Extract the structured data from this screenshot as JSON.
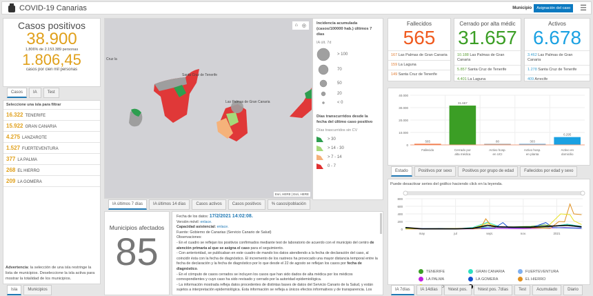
{
  "header": {
    "title": "COVID-19 Canarias",
    "municipio_label": "Municipio",
    "assign_button": "Asignación del caso",
    "menu_icon": "hamburger-icon",
    "logo": "coat-of-arms-logo"
  },
  "cases": {
    "title": "Casos positivos",
    "total": "38.900",
    "percent_text": "1,806% de 2.153.389 personas",
    "rate": "1.806,45",
    "rate_label": "casos por cien mil personas",
    "tabs": [
      "Casos",
      "IA",
      "Test"
    ]
  },
  "islands": {
    "title": "Seleccione una isla para filtrar",
    "items": [
      {
        "value": "16.322",
        "name": "TENERIFE"
      },
      {
        "value": "15.922",
        "name": "GRAN CANARIA"
      },
      {
        "value": "4.275",
        "name": "LANZAROTE"
      },
      {
        "value": "1.527",
        "name": "FUERTEVENTURA"
      },
      {
        "value": "377",
        "name": "LA PALMA"
      },
      {
        "value": "268",
        "name": "EL HIERRO"
      },
      {
        "value": "209",
        "name": "LA GOMERA"
      }
    ],
    "warning_bold": "Advertencia",
    "warning_text": ": la selección de una isla restringe la lista de municipios. Deseleccione la isla activa para mostrar la totalidad de los municipios.",
    "tabs": [
      "Isla",
      "Municipios"
    ]
  },
  "map": {
    "labels": [
      "Santa Cruz de Tenerife",
      "Las Palmas de Gran Canaria",
      "Cruz la"
    ],
    "attribution": "Esri, HERE | Esri, HERE",
    "tabs": [
      "IA últimos 7 días",
      "IA últimos 14 días",
      "Casos activos",
      "Casos positivos",
      "% casos/población"
    ]
  },
  "legend": {
    "title1": "Incidencia acumulada (casos/100000 hab.) últimos 7 días",
    "sub1": "IA últ. 7d",
    "sizes": [
      "> 100",
      "70",
      "50",
      "20",
      "< 0"
    ],
    "title2": "Días transcurridos desde la fecha del último caso positivo",
    "sub2": "Días trascurridos sin CV",
    "classes": [
      {
        "label": "> 30",
        "color": "#2e9e4f"
      },
      {
        "label": "> 14 - 30",
        "color": "#a6d97a"
      },
      {
        "label": "> 7 - 14",
        "color": "#f5b27a"
      },
      {
        "label": "0 - 7",
        "color": "#e03030"
      }
    ]
  },
  "municipios": {
    "title": "Municipios afectados",
    "value": "85"
  },
  "notes": {
    "fecha_label": "Fecha de los datos:",
    "fecha": "17/2/2021 14:02:08.",
    "version_label": "Versión móvil:",
    "version_link": "enlace.",
    "capacidad_label": "Capacidad asistencial:",
    "capacidad_link": "enlace.",
    "fuente": "Fuente: Gobierno de Canarias (Servicio Canario de Salud)",
    "obs_label": "Observaciones:",
    "p1a": "- En el cuadro se reflejan los positivos confirmados mediante test de laboratorio de acuerdo con el municipio del centro ",
    "p1b": "de atención primaria al que se asigna el caso",
    "p1c": " para el seguimiento.",
    "p2a": "- Con anterioridad, se publicaban en este cuadro de mando los datos atendiendo a la fecha de declaración del caso, al coincidir ésta con la fecha de diagnóstico. El incremento de los rastreos ha provocado una mayor distancia temporal entre la fecha de declaración y la fecha de diagnóstico por lo que desde el 22 de agosto se reflejan los casos por ",
    "p2b": "fecha de diagnóstico",
    "p2c": ".",
    "p3": "- En el cómputo de casos cerrados se incluyen los casos que han sido dados de alta médica por los médicos correspondientes y cuyo caso ha sido revisado y cerrado por la autoridad epidemiológica.",
    "p4": "- La información mostrada refleja datos procedentes de distintas bases de datos del Servicio Canario de la Salud, y están sujetos a interpretación epidemiológica. Esta información se refleja a únicos efectos informativos y de transparencia. Los"
  },
  "indicators": [
    {
      "title": "Fallecidos",
      "value": "565",
      "color": "#f05a1e",
      "rows": [
        {
          "v": "167",
          "t": "Las Palmas de Gran Canaria"
        },
        {
          "v": "159",
          "t": "La Laguna"
        },
        {
          "v": "149",
          "t": "Santa Cruz de Tenerife"
        }
      ],
      "rowcolor": "#e07a30"
    },
    {
      "title": "Cerrado por alta médic",
      "value": "31.657",
      "color": "#3b9e25",
      "rows": [
        {
          "v": "10.188",
          "t": "Las Palmas de Gran Canaria"
        },
        {
          "v": "5.857",
          "t": "Santa Cruz de Tenerife"
        },
        {
          "v": "4.401",
          "t": "La Laguna"
        }
      ],
      "rowcolor": "#5a9e35"
    },
    {
      "title": "Activos",
      "value": "6.678",
      "color": "#1ba1e2",
      "rows": [
        {
          "v": "3.462",
          "t": "Las Palmas de Gran Canaria"
        },
        {
          "v": "1.278",
          "t": "Santa Cruz de Tenerife"
        },
        {
          "v": "409",
          "t": "Arrecife"
        }
      ],
      "rowcolor": "#3a9fd0"
    }
  ],
  "bar_tabs": [
    "Estado",
    "Positivos por sexo",
    "Positivos por grupo de edad",
    "Fallecidos por edad y sexo"
  ],
  "line_note": "Puede desactivar series del gráfico haciendo click en la leyenda.",
  "line_tabs": [
    "IA 7días",
    "IA 14días",
    "%test pos.",
    "%test pos. 7días",
    "Test",
    "Acumulado",
    "Diario"
  ],
  "chart_data": [
    {
      "type": "bar",
      "categories": [
        "Fallecido",
        "Cerrado por alta médica",
        "Activo hosp. en UCI",
        "Activo hosp. en planta",
        "Activo en domicilio"
      ],
      "values": [
        565,
        31657,
        80,
        303,
        6295
      ],
      "labels": [
        "565",
        "31.657",
        "80",
        "303",
        "6.295"
      ],
      "colors": [
        "#f05a1e",
        "#3b9e25",
        "#999999",
        "#5aa0d0",
        "#1ba1e2"
      ],
      "ylim": [
        0,
        40000
      ],
      "yticks": [
        "0",
        "10.000",
        "20.000",
        "30.000",
        "40.000"
      ],
      "grid": true
    },
    {
      "type": "line",
      "xticks": [
        {
          "label": "may",
          "date": "2020-05-01"
        },
        {
          "label": "jul",
          "date": "2020-07-01"
        },
        {
          "label": "sept.",
          "date": "2020-09-01"
        },
        {
          "label": "nov.",
          "date": "2020-11-01"
        },
        {
          "label": "2021",
          "date": "2021-01-01"
        }
      ],
      "ylim": [
        0,
        800
      ],
      "yticks": [
        "0",
        "200",
        "400",
        "600",
        "800"
      ],
      "xlim": [
        "2020-04-01",
        "2021-02-17"
      ],
      "legend": "bottom",
      "series": [
        {
          "name": "TENERIFE",
          "color": "#3b9e25",
          "points": [
            [
              "2020-04-01",
              30
            ],
            [
              "2020-05-01",
              5
            ],
            [
              "2020-07-01",
              5
            ],
            [
              "2020-08-01",
              20
            ],
            [
              "2020-08-25",
              60
            ],
            [
              "2020-09-15",
              50
            ],
            [
              "2020-10-15",
              60
            ],
            [
              "2020-11-15",
              70
            ],
            [
              "2020-12-10",
              110
            ],
            [
              "2020-12-25",
              80
            ],
            [
              "2021-01-20",
              90
            ],
            [
              "2021-02-15",
              50
            ]
          ]
        },
        {
          "name": "GRAN CANARIA",
          "color": "#2de0c0",
          "points": [
            [
              "2020-04-01",
              20
            ],
            [
              "2020-05-01",
              3
            ],
            [
              "2020-07-01",
              5
            ],
            [
              "2020-08-01",
              40
            ],
            [
              "2020-08-28",
              180
            ],
            [
              "2020-09-20",
              60
            ],
            [
              "2020-10-15",
              40
            ],
            [
              "2020-11-15",
              40
            ],
            [
              "2020-12-15",
              50
            ],
            [
              "2021-01-20",
              130
            ],
            [
              "2021-02-15",
              70
            ]
          ]
        },
        {
          "name": "FUERTEVENTURA",
          "color": "#7fb0f0",
          "points": [
            [
              "2020-04-01",
              10
            ],
            [
              "2020-06-01",
              20
            ],
            [
              "2020-08-01",
              10
            ],
            [
              "2020-09-01",
              60
            ],
            [
              "2020-10-01",
              30
            ],
            [
              "2020-11-15",
              40
            ],
            [
              "2020-12-15",
              60
            ],
            [
              "2021-01-20",
              100
            ],
            [
              "2021-02-15",
              40
            ]
          ]
        },
        {
          "name": "LA PALMA",
          "color": "#c020e0",
          "points": [
            [
              "2020-04-01",
              5
            ],
            [
              "2020-08-01",
              5
            ],
            [
              "2020-09-15",
              20
            ],
            [
              "2020-11-01",
              10
            ],
            [
              "2020-12-15",
              30
            ],
            [
              "2021-01-15",
              40
            ],
            [
              "2021-02-15",
              20
            ]
          ]
        },
        {
          "name": "LA GOMERA",
          "color": "#1550d0",
          "points": [
            [
              "2020-04-01",
              10
            ],
            [
              "2020-08-15",
              20
            ],
            [
              "2020-09-10",
              30
            ],
            [
              "2020-09-25",
              170
            ],
            [
              "2020-10-05",
              40
            ],
            [
              "2020-11-15",
              30
            ],
            [
              "2020-12-12",
              170
            ],
            [
              "2020-12-25",
              40
            ],
            [
              "2021-02-15",
              20
            ]
          ]
        },
        {
          "name": "EL HIERRO",
          "color": "#e09020",
          "points": [
            [
              "2020-04-01",
              5
            ],
            [
              "2020-08-15",
              10
            ],
            [
              "2020-08-25",
              270
            ],
            [
              "2020-09-05",
              60
            ],
            [
              "2020-10-15",
              50
            ],
            [
              "2020-12-20",
              20
            ],
            [
              "2021-01-05",
              200
            ],
            [
              "2021-01-15",
              190
            ],
            [
              "2021-01-25",
              660
            ],
            [
              "2021-02-01",
              400
            ],
            [
              "2021-02-15",
              380
            ]
          ]
        },
        {
          "name": "LANZAROTE",
          "color": "#e8e020",
          "points": [
            [
              "2020-04-01",
              5
            ],
            [
              "2020-08-01",
              20
            ],
            [
              "2020-08-28",
              150
            ],
            [
              "2020-09-15",
              60
            ],
            [
              "2020-11-15",
              40
            ],
            [
              "2020-12-15",
              60
            ],
            [
              "2021-01-08",
              400
            ],
            [
              "2021-01-25",
              380
            ],
            [
              "2021-02-01",
              220
            ],
            [
              "2021-02-15",
              120
            ]
          ]
        },
        {
          "name": "CANARIAS",
          "color": "#000000",
          "points": [
            [
              "2020-04-01",
              40
            ],
            [
              "2020-05-01",
              5
            ],
            [
              "2020-07-01",
              5
            ],
            [
              "2020-08-01",
              20
            ],
            [
              "2020-08-28",
              100
            ],
            [
              "2020-09-15",
              60
            ],
            [
              "2020-10-15",
              50
            ],
            [
              "2020-11-15",
              50
            ],
            [
              "2020-12-15",
              70
            ],
            [
              "2021-01-20",
              100
            ],
            [
              "2021-02-15",
              60
            ]
          ]
        }
      ]
    }
  ]
}
